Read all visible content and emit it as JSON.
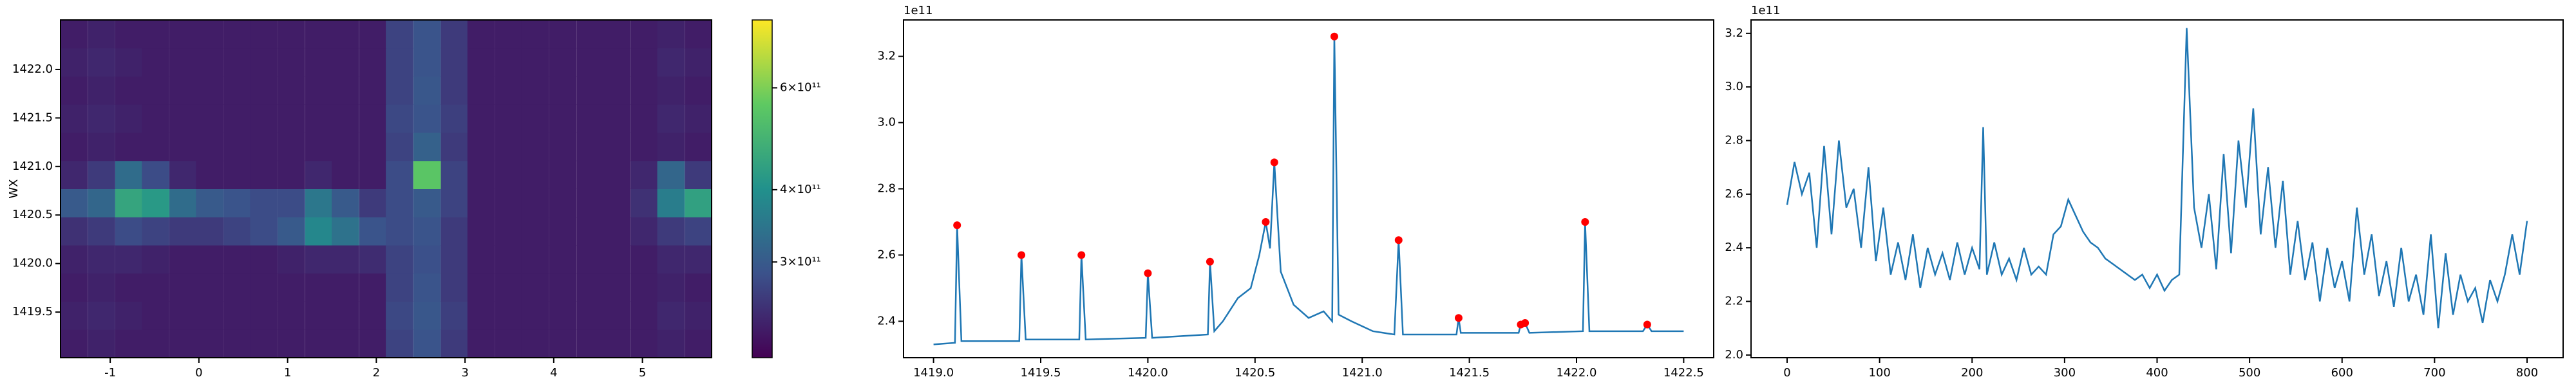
{
  "chart_data": [
    {
      "type": "heatmap",
      "ylabel": "WX",
      "xlim": [
        -1.56,
        5.78
      ],
      "ylim": [
        1419.03,
        1422.51
      ],
      "xticks": [
        -1,
        0,
        1,
        2,
        3,
        4,
        5
      ],
      "yticks": [
        1419.5,
        {
          "value": 1420,
          "label": "1420.0"
        },
        1420.5,
        {
          "value": 1421,
          "label": "1421.0"
        },
        1421.5,
        {
          "value": 1422,
          "label": "1422.0"
        }
      ],
      "x": [
        -1.41,
        -1.1,
        -0.79,
        -0.49,
        -0.18,
        0.12,
        0.43,
        0.73,
        1.04,
        1.35,
        1.65,
        1.96,
        2.26,
        2.57,
        2.88,
        3.18,
        3.49,
        3.79,
        4.1,
        4.41,
        4.71,
        5.02,
        5.32,
        5.63
      ],
      "y": [
        1419.175,
        1419.465,
        1419.755,
        1420.045,
        1420.335,
        1420.625,
        1420.915,
        1421.205,
        1421.495,
        1421.785,
        1422.075,
        1422.365
      ],
      "z": [
        [
          230000000000.0,
          235000000000.0,
          230000000000.0,
          230000000000.0,
          230000000000.0,
          230000000000.0,
          230000000000.0,
          230000000000.0,
          230000000000.0,
          230000000000.0,
          230000000000.0,
          230000000000.0,
          270000000000.0,
          290000000000.0,
          260000000000.0,
          230000000000.0,
          230000000000.0,
          230000000000.0,
          230000000000.0,
          230000000000.0,
          230000000000.0,
          230000000000.0,
          235000000000.0,
          230000000000.0
        ],
        [
          235000000000.0,
          240000000000.0,
          235000000000.0,
          230000000000.0,
          230000000000.0,
          230000000000.0,
          230000000000.0,
          230000000000.0,
          230000000000.0,
          230000000000.0,
          230000000000.0,
          230000000000.0,
          275000000000.0,
          295000000000.0,
          265000000000.0,
          230000000000.0,
          230000000000.0,
          230000000000.0,
          230000000000.0,
          230000000000.0,
          230000000000.0,
          230000000000.0,
          240000000000.0,
          235000000000.0
        ],
        [
          230000000000.0,
          235000000000.0,
          230000000000.0,
          230000000000.0,
          230000000000.0,
          230000000000.0,
          230000000000.0,
          230000000000.0,
          230000000000.0,
          230000000000.0,
          230000000000.0,
          230000000000.0,
          270000000000.0,
          290000000000.0,
          260000000000.0,
          230000000000.0,
          230000000000.0,
          230000000000.0,
          230000000000.0,
          230000000000.0,
          230000000000.0,
          230000000000.0,
          235000000000.0,
          230000000000.0
        ],
        [
          235000000000.0,
          240000000000.0,
          240000000000.0,
          235000000000.0,
          230000000000.0,
          230000000000.0,
          230000000000.0,
          230000000000.0,
          235000000000.0,
          240000000000.0,
          240000000000.0,
          245000000000.0,
          270000000000.0,
          285000000000.0,
          260000000000.0,
          230000000000.0,
          230000000000.0,
          230000000000.0,
          230000000000.0,
          230000000000.0,
          230000000000.0,
          230000000000.0,
          240000000000.0,
          240000000000.0
        ],
        [
          250000000000.0,
          260000000000.0,
          280000000000.0,
          270000000000.0,
          260000000000.0,
          260000000000.0,
          270000000000.0,
          280000000000.0,
          300000000000.0,
          380000000000.0,
          340000000000.0,
          290000000000.0,
          280000000000.0,
          290000000000.0,
          260000000000.0,
          230000000000.0,
          230000000000.0,
          230000000000.0,
          230000000000.0,
          230000000000.0,
          230000000000.0,
          240000000000.0,
          260000000000.0,
          270000000000.0
        ],
        [
          300000000000.0,
          320000000000.0,
          450000000000.0,
          420000000000.0,
          330000000000.0,
          300000000000.0,
          290000000000.0,
          280000000000.0,
          280000000000.0,
          350000000000.0,
          300000000000.0,
          260000000000.0,
          280000000000.0,
          300000000000.0,
          270000000000.0,
          230000000000.0,
          230000000000.0,
          230000000000.0,
          230000000000.0,
          230000000000.0,
          230000000000.0,
          250000000000.0,
          360000000000.0,
          440000000000.0
        ],
        [
          240000000000.0,
          260000000000.0,
          330000000000.0,
          280000000000.0,
          240000000000.0,
          230000000000.0,
          230000000000.0,
          230000000000.0,
          230000000000.0,
          240000000000.0,
          230000000000.0,
          230000000000.0,
          280000000000.0,
          550000000000.0,
          270000000000.0,
          230000000000.0,
          230000000000.0,
          230000000000.0,
          230000000000.0,
          230000000000.0,
          230000000000.0,
          240000000000.0,
          320000000000.0,
          260000000000.0
        ],
        [
          230000000000.0,
          235000000000.0,
          230000000000.0,
          230000000000.0,
          230000000000.0,
          230000000000.0,
          230000000000.0,
          230000000000.0,
          230000000000.0,
          230000000000.0,
          230000000000.0,
          230000000000.0,
          270000000000.0,
          310000000000.0,
          260000000000.0,
          230000000000.0,
          230000000000.0,
          230000000000.0,
          230000000000.0,
          230000000000.0,
          230000000000.0,
          230000000000.0,
          235000000000.0,
          230000000000.0
        ],
        [
          235000000000.0,
          240000000000.0,
          235000000000.0,
          230000000000.0,
          230000000000.0,
          230000000000.0,
          230000000000.0,
          230000000000.0,
          230000000000.0,
          230000000000.0,
          230000000000.0,
          230000000000.0,
          275000000000.0,
          290000000000.0,
          265000000000.0,
          230000000000.0,
          230000000000.0,
          230000000000.0,
          230000000000.0,
          230000000000.0,
          230000000000.0,
          230000000000.0,
          240000000000.0,
          235000000000.0
        ],
        [
          230000000000.0,
          235000000000.0,
          230000000000.0,
          230000000000.0,
          230000000000.0,
          230000000000.0,
          230000000000.0,
          230000000000.0,
          230000000000.0,
          230000000000.0,
          230000000000.0,
          230000000000.0,
          270000000000.0,
          295000000000.0,
          260000000000.0,
          230000000000.0,
          230000000000.0,
          230000000000.0,
          230000000000.0,
          230000000000.0,
          230000000000.0,
          230000000000.0,
          235000000000.0,
          230000000000.0
        ],
        [
          235000000000.0,
          240000000000.0,
          235000000000.0,
          230000000000.0,
          230000000000.0,
          230000000000.0,
          230000000000.0,
          230000000000.0,
          230000000000.0,
          230000000000.0,
          230000000000.0,
          230000000000.0,
          270000000000.0,
          290000000000.0,
          260000000000.0,
          230000000000.0,
          230000000000.0,
          230000000000.0,
          230000000000.0,
          230000000000.0,
          230000000000.0,
          230000000000.0,
          240000000000.0,
          235000000000.0
        ],
        [
          230000000000.0,
          235000000000.0,
          230000000000.0,
          230000000000.0,
          230000000000.0,
          230000000000.0,
          230000000000.0,
          230000000000.0,
          230000000000.0,
          230000000000.0,
          230000000000.0,
          230000000000.0,
          270000000000.0,
          290000000000.0,
          260000000000.0,
          230000000000.0,
          230000000000.0,
          230000000000.0,
          230000000000.0,
          230000000000.0,
          230000000000.0,
          230000000000.0,
          235000000000.0,
          230000000000.0
        ]
      ],
      "colorbar": {
        "scale": "log",
        "colormap": "viridis",
        "lim": [
          205000000000.0,
          786000000000.0
        ],
        "ticks": [
          {
            "value": 300000000000.0,
            "label": "3×10¹¹"
          },
          {
            "value": 400000000000.0,
            "label": "4×10¹¹"
          },
          {
            "value": 600000000000.0,
            "label": "6×10¹¹"
          }
        ]
      }
    },
    {
      "type": "line",
      "offset_text": "1e11",
      "xlim": [
        1418.86,
        1422.64
      ],
      "ylim": [
        2.29,
        3.31
      ],
      "xticks": [
        {
          "value": 1419,
          "label": "1419.0"
        },
        1419.5,
        {
          "value": 1420,
          "label": "1420.0"
        },
        1420.5,
        {
          "value": 1421,
          "label": "1421.0"
        },
        1421.5,
        {
          "value": 1422,
          "label": "1422.0"
        },
        1422.5
      ],
      "yticks": [
        2.4,
        2.6,
        2.8,
        {
          "value": 3,
          "label": "3.0"
        },
        3.2
      ],
      "series": [
        {
          "color": "#1f77b4",
          "x": [
            1419.0,
            1419.1,
            1419.11,
            1419.13,
            1419.4,
            1419.41,
            1419.43,
            1419.68,
            1419.69,
            1419.71,
            1419.99,
            1420.0,
            1420.02,
            1420.28,
            1420.29,
            1420.31,
            1420.35,
            1420.42,
            1420.48,
            1420.52,
            1420.55,
            1420.57,
            1420.59,
            1420.62,
            1420.68,
            1420.75,
            1420.82,
            1420.86,
            1420.87,
            1420.89,
            1420.95,
            1421.05,
            1421.15,
            1421.17,
            1421.19,
            1421.44,
            1421.45,
            1421.46,
            1421.73,
            1421.74,
            1421.76,
            1421.78,
            1422.03,
            1422.04,
            1422.06,
            1422.31,
            1422.33,
            1422.35,
            1422.5
          ],
          "values": [
            2.33,
            2.335,
            2.69,
            2.34,
            2.34,
            2.6,
            2.345,
            2.345,
            2.6,
            2.345,
            2.35,
            2.545,
            2.35,
            2.36,
            2.58,
            2.37,
            2.4,
            2.47,
            2.5,
            2.6,
            2.7,
            2.62,
            2.88,
            2.55,
            2.45,
            2.41,
            2.43,
            2.4,
            3.26,
            2.42,
            2.4,
            2.37,
            2.36,
            2.645,
            2.36,
            2.36,
            2.41,
            2.365,
            2.365,
            2.39,
            2.395,
            2.365,
            2.37,
            2.7,
            2.37,
            2.37,
            2.39,
            2.37,
            2.37
          ]
        }
      ],
      "peaks": {
        "color": "#ff0000",
        "x": [
          1419.11,
          1419.41,
          1419.69,
          1420.0,
          1420.29,
          1420.55,
          1420.59,
          1420.87,
          1421.17,
          1421.45,
          1421.74,
          1421.76,
          1422.04,
          1422.33
        ],
        "values": [
          2.69,
          2.6,
          2.6,
          2.545,
          2.58,
          2.7,
          2.88,
          3.26,
          2.645,
          2.41,
          2.39,
          2.395,
          2.7,
          2.39
        ]
      }
    },
    {
      "type": "line",
      "offset_text": "1e11",
      "xlim": [
        -39,
        839
      ],
      "ylim": [
        1.99,
        3.25
      ],
      "xticks": [
        0,
        100,
        200,
        300,
        400,
        500,
        600,
        700,
        800
      ],
      "yticks": [
        {
          "value": 2,
          "label": "2.0"
        },
        2.2,
        2.4,
        2.6,
        2.8,
        {
          "value": 3,
          "label": "3.0"
        },
        3.2
      ],
      "series": [
        {
          "color": "#1f77b4",
          "x": [
            0,
            8,
            16,
            24,
            32,
            40,
            48,
            56,
            64,
            72,
            80,
            88,
            96,
            104,
            112,
            120,
            128,
            136,
            144,
            152,
            160,
            168,
            176,
            184,
            192,
            200,
            208,
            212,
            216,
            224,
            232,
            240,
            248,
            256,
            264,
            272,
            280,
            288,
            296,
            304,
            312,
            320,
            328,
            336,
            344,
            352,
            360,
            368,
            376,
            384,
            392,
            400,
            408,
            416,
            424,
            432,
            440,
            448,
            456,
            464,
            472,
            480,
            488,
            496,
            504,
            512,
            520,
            528,
            536,
            544,
            552,
            560,
            568,
            576,
            584,
            592,
            600,
            608,
            616,
            624,
            632,
            640,
            648,
            656,
            664,
            672,
            680,
            688,
            696,
            704,
            712,
            720,
            728,
            736,
            744,
            752,
            760,
            768,
            776,
            784,
            792,
            800
          ],
          "values": [
            2.56,
            2.72,
            2.6,
            2.68,
            2.4,
            2.78,
            2.45,
            2.8,
            2.55,
            2.62,
            2.4,
            2.7,
            2.35,
            2.55,
            2.3,
            2.42,
            2.28,
            2.45,
            2.25,
            2.4,
            2.3,
            2.38,
            2.28,
            2.42,
            2.3,
            2.4,
            2.32,
            2.85,
            2.3,
            2.42,
            2.3,
            2.36,
            2.28,
            2.4,
            2.3,
            2.33,
            2.3,
            2.45,
            2.48,
            2.58,
            2.52,
            2.46,
            2.42,
            2.4,
            2.36,
            2.34,
            2.32,
            2.3,
            2.28,
            2.3,
            2.25,
            2.3,
            2.24,
            2.28,
            2.3,
            3.22,
            2.55,
            2.4,
            2.6,
            2.32,
            2.75,
            2.38,
            2.8,
            2.55,
            2.92,
            2.45,
            2.7,
            2.4,
            2.65,
            2.3,
            2.5,
            2.28,
            2.42,
            2.2,
            2.4,
            2.25,
            2.35,
            2.2,
            2.55,
            2.3,
            2.45,
            2.22,
            2.35,
            2.18,
            2.4,
            2.2,
            2.3,
            2.15,
            2.45,
            2.1,
            2.38,
            2.15,
            2.3,
            2.2,
            2.25,
            2.12,
            2.28,
            2.2,
            2.3,
            2.45,
            2.3,
            2.5
          ]
        }
      ]
    }
  ]
}
